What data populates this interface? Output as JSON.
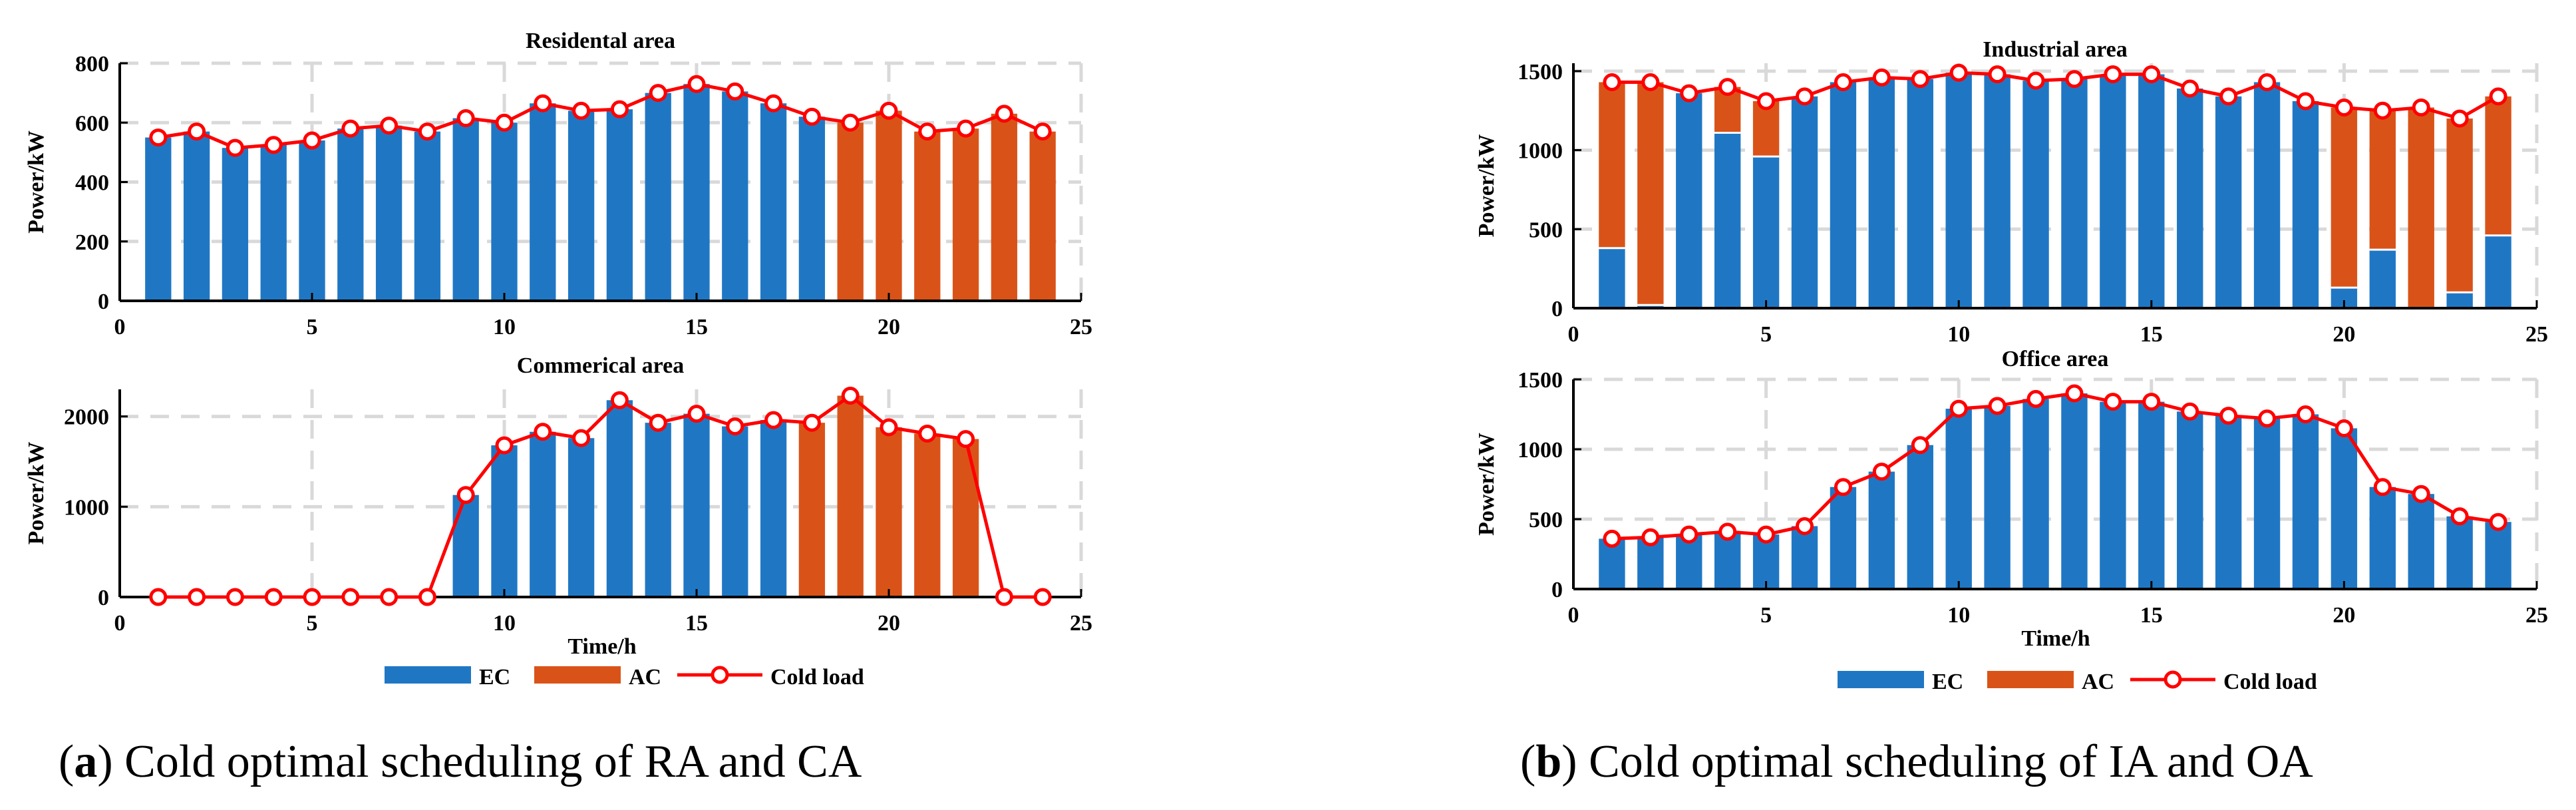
{
  "colors": {
    "ec": "#1f77c4",
    "ac": "#d95319",
    "cold": "#ff0000",
    "grid": "#d9d9d9"
  },
  "captions": {
    "a": {
      "letter": "a",
      "text": " Cold optimal scheduling of RA and CA"
    },
    "b": {
      "letter": "b",
      "text": " Cold optimal scheduling of IA and OA"
    }
  },
  "legend": {
    "ec": "EC",
    "ac": "AC",
    "cold": "Cold load"
  },
  "chart_data": [
    {
      "type": "bar",
      "stacked": true,
      "title": "Residental area",
      "xlabel": "",
      "ylabel": "Power/kW",
      "xlim": [
        0,
        25
      ],
      "ylim": [
        0,
        800
      ],
      "xticks": [
        0,
        5,
        10,
        15,
        20,
        25
      ],
      "yticks": [
        0,
        200,
        400,
        600,
        800
      ],
      "x": [
        1,
        2,
        3,
        4,
        5,
        6,
        7,
        8,
        9,
        10,
        11,
        12,
        13,
        14,
        15,
        16,
        17,
        18,
        19,
        20,
        21,
        22,
        23,
        24
      ],
      "series": [
        {
          "name": "EC",
          "values": [
            550,
            570,
            515,
            525,
            540,
            580,
            590,
            570,
            615,
            600,
            665,
            640,
            645,
            700,
            730,
            705,
            665,
            620,
            0,
            0,
            0,
            0,
            0,
            0
          ]
        },
        {
          "name": "AC",
          "values": [
            0,
            0,
            0,
            0,
            0,
            0,
            0,
            0,
            0,
            0,
            0,
            0,
            0,
            0,
            0,
            0,
            0,
            0,
            600,
            640,
            570,
            580,
            630,
            570
          ]
        },
        {
          "name": "Cold load",
          "type": "line",
          "values": [
            550,
            570,
            515,
            525,
            540,
            580,
            590,
            570,
            615,
            600,
            665,
            640,
            645,
            700,
            730,
            705,
            665,
            620,
            600,
            640,
            570,
            580,
            630,
            570
          ]
        }
      ]
    },
    {
      "type": "bar",
      "stacked": true,
      "title": "Commerical area",
      "xlabel": "Time/h",
      "ylabel": "Power/kW",
      "xlim": [
        0,
        25
      ],
      "ylim": [
        0,
        2300
      ],
      "xticks": [
        0,
        5,
        10,
        15,
        20,
        25
      ],
      "yticks": [
        0,
        1000,
        2000
      ],
      "x": [
        1,
        2,
        3,
        4,
        5,
        6,
        7,
        8,
        9,
        10,
        11,
        12,
        13,
        14,
        15,
        16,
        17,
        18,
        19,
        20,
        21,
        22,
        23,
        24
      ],
      "series": [
        {
          "name": "EC",
          "values": [
            0,
            0,
            0,
            0,
            0,
            0,
            0,
            0,
            1130,
            1680,
            1830,
            1760,
            2180,
            1930,
            2030,
            1890,
            1960,
            0,
            0,
            0,
            0,
            0,
            0,
            0
          ]
        },
        {
          "name": "AC",
          "values": [
            0,
            0,
            0,
            0,
            0,
            0,
            0,
            0,
            0,
            0,
            0,
            0,
            0,
            0,
            0,
            0,
            0,
            1930,
            2230,
            1880,
            1810,
            1750,
            0,
            0
          ]
        },
        {
          "name": "Cold load",
          "type": "line",
          "values": [
            0,
            0,
            0,
            0,
            0,
            0,
            0,
            0,
            1130,
            1680,
            1830,
            1760,
            2180,
            1930,
            2030,
            1890,
            1960,
            1930,
            2230,
            1880,
            1810,
            1750,
            0,
            0
          ]
        }
      ]
    },
    {
      "type": "bar",
      "stacked": true,
      "title": "Industrial area",
      "xlabel": "",
      "ylabel": "Power/kW",
      "xlim": [
        0,
        25
      ],
      "ylim": [
        0,
        1550
      ],
      "xticks": [
        0,
        5,
        10,
        15,
        20,
        25
      ],
      "yticks": [
        0,
        500,
        1000,
        1500
      ],
      "x": [
        1,
        2,
        3,
        4,
        5,
        6,
        7,
        8,
        9,
        10,
        11,
        12,
        13,
        14,
        15,
        16,
        17,
        18,
        19,
        20,
        21,
        22,
        23,
        24
      ],
      "series": [
        {
          "name": "EC",
          "values": [
            380,
            20,
            1360,
            1110,
            960,
            1340,
            1430,
            1460,
            1450,
            1490,
            1480,
            1440,
            1450,
            1480,
            1480,
            1390,
            1340,
            1430,
            1310,
            130,
            370,
            0,
            100,
            460
          ]
        },
        {
          "name": "AC",
          "values": [
            1050,
            1410,
            0,
            290,
            350,
            0,
            0,
            0,
            0,
            0,
            0,
            0,
            0,
            0,
            0,
            0,
            0,
            0,
            0,
            1140,
            880,
            1270,
            1100,
            880
          ]
        },
        {
          "name": "Cold load",
          "type": "line",
          "values": [
            1430,
            1430,
            1360,
            1400,
            1310,
            1340,
            1430,
            1460,
            1450,
            1490,
            1480,
            1440,
            1450,
            1480,
            1480,
            1390,
            1340,
            1430,
            1310,
            1270,
            1250,
            1270,
            1200,
            1340
          ]
        }
      ]
    },
    {
      "type": "bar",
      "stacked": true,
      "title": "Office area",
      "xlabel": "Time/h",
      "ylabel": "Power/kW",
      "xlim": [
        0,
        25
      ],
      "ylim": [
        0,
        1500
      ],
      "xticks": [
        0,
        5,
        10,
        15,
        20,
        25
      ],
      "yticks": [
        0,
        500,
        1000,
        1500
      ],
      "x": [
        1,
        2,
        3,
        4,
        5,
        6,
        7,
        8,
        9,
        10,
        11,
        12,
        13,
        14,
        15,
        16,
        17,
        18,
        19,
        20,
        21,
        22,
        23,
        24
      ],
      "series": [
        {
          "name": "EC",
          "values": [
            360,
            370,
            390,
            410,
            390,
            450,
            730,
            840,
            1030,
            1290,
            1310,
            1360,
            1400,
            1340,
            1340,
            1270,
            1240,
            1220,
            1250,
            1150,
            730,
            680,
            520,
            480
          ]
        },
        {
          "name": "AC",
          "values": [
            0,
            0,
            0,
            0,
            0,
            0,
            0,
            0,
            0,
            0,
            0,
            0,
            0,
            0,
            0,
            0,
            0,
            0,
            0,
            0,
            0,
            0,
            0,
            0
          ]
        },
        {
          "name": "Cold load",
          "type": "line",
          "values": [
            360,
            370,
            390,
            410,
            390,
            450,
            730,
            840,
            1030,
            1290,
            1310,
            1360,
            1400,
            1340,
            1340,
            1270,
            1240,
            1220,
            1250,
            1150,
            730,
            680,
            520,
            480
          ]
        }
      ]
    }
  ]
}
